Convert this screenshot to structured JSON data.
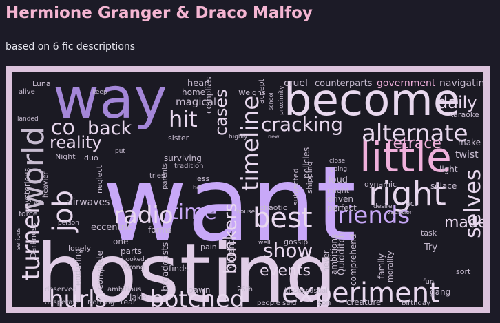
{
  "page": {
    "title": "Hermione Granger & Draco Malfoy",
    "subtitle": "based on 6 fic descriptions"
  },
  "wordcloud": {
    "palette": {
      "lavender": "#c8a8f8",
      "purple": "#a487d8",
      "pink": "#f0b0dc",
      "light": "#e8d8ee",
      "grey": "#c7bcd0",
      "frame": "#dcc3dd"
    },
    "words": [
      {
        "text": "want",
        "color": "#c8a8f8"
      },
      {
        "text": "hosting",
        "color": "#e0cde6"
      },
      {
        "text": "way",
        "color": "#a487d8"
      },
      {
        "text": "become",
        "color": "#e8d8ee"
      },
      {
        "text": "little",
        "color": "#f0b0dc"
      },
      {
        "text": "right",
        "color": "#e8d8ee"
      },
      {
        "text": "world",
        "color": "#c7bcd0"
      },
      {
        "text": "job",
        "color": "#e8d8ee"
      },
      {
        "text": "turner",
        "color": "#e8d8ee"
      },
      {
        "text": "alternate",
        "color": "#e8d8ee"
      },
      {
        "text": "timeline",
        "color": "#e8d8ee"
      },
      {
        "text": "cracking",
        "color": "#e8d8ee"
      },
      {
        "text": "hit",
        "color": "#e8d8ee"
      },
      {
        "text": "co",
        "color": "#e8d8ee"
      },
      {
        "text": "back",
        "color": "#e8d8ee"
      },
      {
        "text": "reality",
        "color": "#e8d8ee"
      },
      {
        "text": "cases",
        "color": "#e8d8ee"
      },
      {
        "text": "daily",
        "color": "#e8d8ee"
      },
      {
        "text": "retrace",
        "color": "#f0b0dc"
      },
      {
        "text": "radio",
        "color": "#e8d8ee"
      },
      {
        "text": "time",
        "color": "#c8a8f8"
      },
      {
        "text": "best",
        "color": "#e8d8ee"
      },
      {
        "text": "friends",
        "color": "#c8a8f8"
      },
      {
        "text": "bonkers",
        "color": "#e8d8ee"
      },
      {
        "text": "show",
        "color": "#e8d8ee"
      },
      {
        "text": "events",
        "color": "#e8d8ee"
      },
      {
        "text": "made",
        "color": "#e8d8ee"
      },
      {
        "text": "selves",
        "color": "#e8d8ee"
      },
      {
        "text": "hurls",
        "color": "#e8d8ee"
      },
      {
        "text": "botched",
        "color": "#e8d8ee"
      },
      {
        "text": "experiment",
        "color": "#e8d8ee"
      },
      {
        "text": "heart",
        "color": "#c7bcd0"
      },
      {
        "text": "cruel",
        "color": "#c7bcd0"
      },
      {
        "text": "counterparts",
        "color": "#c7bcd0"
      },
      {
        "text": "government",
        "color": "#f0b0dc"
      },
      {
        "text": "navigating",
        "color": "#c7bcd0"
      },
      {
        "text": "Luna",
        "color": "#c7bcd0"
      },
      {
        "text": "alive",
        "color": "#c7bcd0"
      },
      {
        "text": "keep",
        "color": "#c7bcd0"
      },
      {
        "text": "home",
        "color": "#c7bcd0"
      },
      {
        "text": "magical",
        "color": "#c7bcd0"
      },
      {
        "text": "complies",
        "color": "#c7bcd0"
      },
      {
        "text": "Weighs",
        "color": "#c7bcd0"
      },
      {
        "text": "accept",
        "color": "#c7bcd0"
      },
      {
        "text": "school",
        "color": "#c7bcd0"
      },
      {
        "text": "proximity",
        "color": "#c7bcd0"
      },
      {
        "text": "karaoke",
        "color": "#c7bcd0"
      },
      {
        "text": "landed",
        "color": "#c7bcd0"
      },
      {
        "text": "sister",
        "color": "#c7bcd0"
      },
      {
        "text": "highly",
        "color": "#c7bcd0"
      },
      {
        "text": "new",
        "color": "#c7bcd0"
      },
      {
        "text": "make",
        "color": "#c7bcd0"
      },
      {
        "text": "twist",
        "color": "#c7bcd0"
      },
      {
        "text": "Night",
        "color": "#c7bcd0"
      },
      {
        "text": "duo",
        "color": "#c7bcd0"
      },
      {
        "text": "put",
        "color": "#c7bcd0"
      },
      {
        "text": "surviving",
        "color": "#c7bcd0"
      },
      {
        "text": "tradition",
        "color": "#c7bcd0"
      },
      {
        "text": "policies",
        "color": "#c7bcd0"
      },
      {
        "text": "close",
        "color": "#c7bcd0"
      },
      {
        "text": "going",
        "color": "#c7bcd0"
      },
      {
        "text": "loud",
        "color": "#c7bcd0"
      },
      {
        "text": "light",
        "color": "#c7bcd0"
      },
      {
        "text": "mysterious",
        "color": "#c7bcd0"
      },
      {
        "text": "heavier",
        "color": "#c7bcd0"
      },
      {
        "text": "neglect",
        "color": "#c7bcd0"
      },
      {
        "text": "tries",
        "color": "#c7bcd0"
      },
      {
        "text": "parents",
        "color": "#c7bcd0"
      },
      {
        "text": "less",
        "color": "#c7bcd0"
      },
      {
        "text": "bet",
        "color": "#c7bcd0"
      },
      {
        "text": "subjected",
        "color": "#c7bcd0"
      },
      {
        "text": "shipping",
        "color": "#c7bcd0"
      },
      {
        "text": "might",
        "color": "#c7bcd0"
      },
      {
        "text": "dynamic",
        "color": "#c7bcd0"
      },
      {
        "text": "solace",
        "color": "#c7bcd0"
      },
      {
        "text": "airwaves",
        "color": "#c7bcd0"
      },
      {
        "text": "win",
        "color": "#c7bcd0"
      },
      {
        "text": "force",
        "color": "#c7bcd0"
      },
      {
        "text": "chaotic",
        "color": "#c7bcd0"
      },
      {
        "text": "driven",
        "color": "#c7bcd0"
      },
      {
        "text": "perfect",
        "color": "#c7bcd0"
      },
      {
        "text": "act",
        "color": "#c7bcd0"
      },
      {
        "text": "desire",
        "color": "#c7bcd0"
      },
      {
        "text": "house",
        "color": "#c7bcd0"
      },
      {
        "text": "vacation",
        "color": "#c7bcd0"
      },
      {
        "text": "eccentric",
        "color": "#c7bcd0"
      },
      {
        "text": "person",
        "color": "#c7bcd0"
      },
      {
        "text": "forms",
        "color": "#c7bcd0"
      },
      {
        "text": "task",
        "color": "#c7bcd0"
      },
      {
        "text": "serious",
        "color": "#c7bcd0"
      },
      {
        "text": "Darkness",
        "color": "#c7bcd0"
      },
      {
        "text": "lonely",
        "color": "#c7bcd0"
      },
      {
        "text": "one",
        "color": "#c7bcd0"
      },
      {
        "text": "parts",
        "color": "#c7bcd0"
      },
      {
        "text": "booked",
        "color": "#c7bcd0"
      },
      {
        "text": "Wrong",
        "color": "#c7bcd0"
      },
      {
        "text": "pain",
        "color": "#c7bcd0"
      },
      {
        "text": "violent",
        "color": "#c7bcd0"
      },
      {
        "text": "well",
        "color": "#c7bcd0"
      },
      {
        "text": "gossip",
        "color": "#c7bcd0"
      },
      {
        "text": "never",
        "color": "#c7bcd0"
      },
      {
        "text": "ambitions",
        "color": "#c7bcd0"
      },
      {
        "text": "Quidditch",
        "color": "#c7bcd0"
      },
      {
        "text": "comprehend",
        "color": "#c7bcd0"
      },
      {
        "text": "family",
        "color": "#c7bcd0"
      },
      {
        "text": "morality",
        "color": "#c7bcd0"
      },
      {
        "text": "Try",
        "color": "#c7bcd0"
      },
      {
        "text": "sort",
        "color": "#c7bcd0"
      },
      {
        "text": "enduring",
        "color": "#c7bcd0"
      },
      {
        "text": "complete",
        "color": "#c7bcd0"
      },
      {
        "text": "broadcasts",
        "color": "#c7bcd0"
      },
      {
        "text": "finds",
        "color": "#c7bcd0"
      },
      {
        "text": "deserved",
        "color": "#c7bcd0"
      },
      {
        "text": "ambitious",
        "color": "#c7bcd0"
      },
      {
        "text": "lake",
        "color": "#c7bcd0"
      },
      {
        "text": "pawn",
        "color": "#c7bcd0"
      },
      {
        "text": "26th",
        "color": "#c7bcd0"
      },
      {
        "text": "kisses",
        "color": "#c7bcd0"
      },
      {
        "text": "casual",
        "color": "#c7bcd0"
      },
      {
        "text": "fun",
        "color": "#c7bcd0"
      },
      {
        "text": "gang",
        "color": "#c7bcd0"
      },
      {
        "text": "desperate",
        "color": "#c7bcd0"
      },
      {
        "text": "Nothing",
        "color": "#c7bcd0"
      },
      {
        "text": "tear",
        "color": "#c7bcd0"
      },
      {
        "text": "people",
        "color": "#c7bcd0"
      },
      {
        "text": "said",
        "color": "#c7bcd0"
      },
      {
        "text": "son",
        "color": "#c7bcd0"
      },
      {
        "text": "creature",
        "color": "#c7bcd0"
      },
      {
        "text": "birthday",
        "color": "#c7bcd0"
      }
    ]
  }
}
